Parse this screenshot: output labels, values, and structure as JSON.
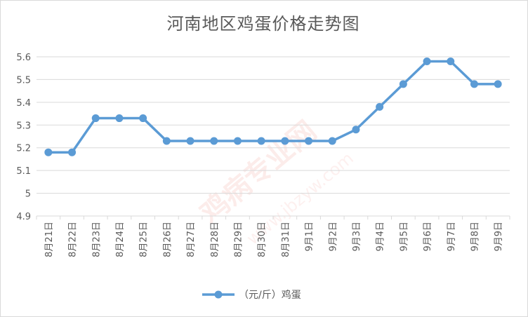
{
  "chart_data": {
    "type": "line",
    "title": "河南地区鸡蛋价格走势图",
    "xlabel": "",
    "ylabel": "",
    "ylim": [
      4.9,
      5.6
    ],
    "yticks": [
      "4.9",
      "5",
      "5.1",
      "5.2",
      "5.3",
      "5.4",
      "5.5",
      "5.6"
    ],
    "categories": [
      "8月21日",
      "8月22日",
      "8月23日",
      "8月24日",
      "8月25日",
      "8月26日",
      "8月27日",
      "8月28日",
      "8月29日",
      "8月30日",
      "8月31日",
      "9月1日",
      "9月2日",
      "9月3日",
      "9月4日",
      "9月5日",
      "9月6日",
      "9月7日",
      "9月8日",
      "9月9日"
    ],
    "series": [
      {
        "name": "（元/斤）鸡蛋",
        "color": "#5b9bd5",
        "values": [
          5.18,
          5.18,
          5.33,
          5.33,
          5.33,
          5.23,
          5.23,
          5.23,
          5.23,
          5.23,
          5.23,
          5.23,
          5.23,
          5.28,
          5.38,
          5.48,
          5.58,
          5.58,
          5.48,
          5.48
        ]
      }
    ],
    "grid": true,
    "legend_position": "bottom"
  },
  "watermark": {
    "main": "鸡病专业网",
    "url": "www.jbzyw.com"
  }
}
